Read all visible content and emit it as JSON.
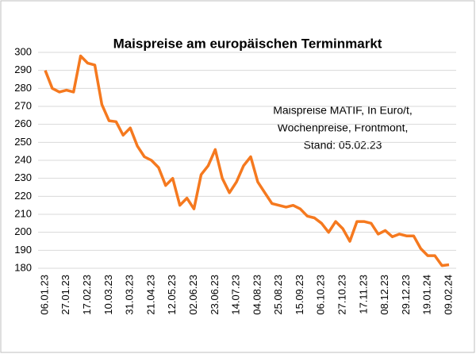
{
  "chart_data": {
    "type": "line",
    "title": "Maispreise am europäischen Terminmarkt",
    "annotation": [
      "Maispreise MATIF, In Euro/t,",
      "Wochenpreise, Frontmont,",
      "Stand: 05.02.23"
    ],
    "categories": [
      "06.01.23",
      null,
      null,
      "27.01.23",
      null,
      null,
      "17.02.23",
      null,
      null,
      "10.03.23",
      null,
      null,
      "31.03.23",
      null,
      null,
      "21.04.23",
      null,
      null,
      "12.05.23",
      null,
      null,
      "02.06.23",
      null,
      null,
      "23.06.23",
      null,
      null,
      "14.07.23",
      null,
      null,
      "04.08.23",
      null,
      null,
      "25.08.23",
      null,
      null,
      "15.09.23",
      null,
      null,
      "06.10.23",
      null,
      null,
      "27.10.23",
      null,
      null,
      "17.11.23",
      null,
      null,
      "08.12.23",
      null,
      null,
      "29.12.23",
      null,
      null,
      "19.01.24",
      null,
      null,
      "09.02.24"
    ],
    "series": [
      {
        "name": "Maispreise MATIF",
        "color": "#f5791f",
        "values": [
          290,
          280,
          278,
          279,
          278,
          298,
          294,
          293,
          271,
          262,
          261.5,
          254,
          258,
          248,
          242,
          240,
          236,
          226,
          230,
          215,
          219,
          213,
          232,
          237,
          246,
          230,
          222,
          228,
          237,
          242,
          228,
          222,
          216,
          215,
          214,
          215,
          213,
          209,
          208,
          205,
          200,
          206,
          202,
          195,
          206,
          206,
          205,
          199,
          201,
          197.5,
          199,
          198,
          198,
          191,
          187,
          187,
          181.5,
          182
        ]
      }
    ],
    "ylim": [
      180,
      300
    ],
    "yticks": [
      180,
      190,
      200,
      210,
      220,
      230,
      240,
      250,
      260,
      270,
      280,
      290,
      300
    ],
    "grid": true
  }
}
